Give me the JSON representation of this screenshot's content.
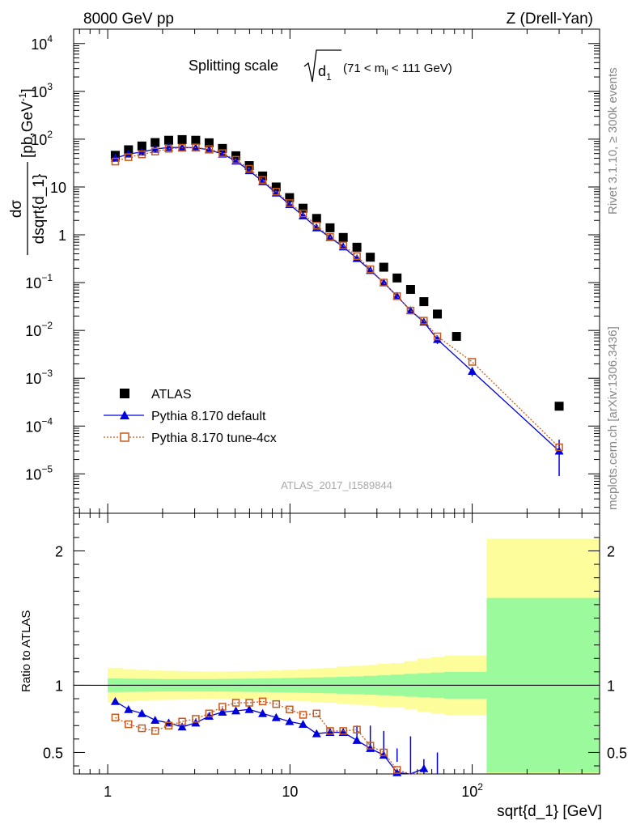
{
  "chart_data": {
    "type": "scatter",
    "header_left": "8000 GeV pp",
    "header_right": "Z (Drell-Yan)",
    "title_main": "Splitting scale",
    "title_sqrt": "d",
    "title_sqrt_sub": "1",
    "title_range_a": "(71 < m",
    "title_range_sub": "ll",
    "title_range_b": " < 111 GeV)",
    "ylabel_num": "dσ",
    "ylabel_den": "dsqrt{d_1}",
    "ylabel_unit": "[pb,GeV",
    "ylabel_unit_sup": "-1",
    "ylabel_unit_end": "]",
    "ratio_ylabel": "Ratio to ATLAS",
    "xlabel": "sqrt{d_1} [GeV]",
    "side_text_top": "Rivet 3.1.10, ≥ 300k events",
    "side_text_bottom": "mcplots.cern.ch [arXiv:1306.3436]",
    "watermark": "ATLAS_2017_I1589844",
    "x_scale": "log",
    "xlim": [
      0.65,
      500
    ],
    "ylim_main": [
      1.5e-06,
      20000
    ],
    "ylim_ratio": [
      0.34,
      2.28
    ],
    "x_tick_labels": [
      {
        "v": 1,
        "t": "1"
      },
      {
        "v": 10,
        "t": "10"
      },
      {
        "v": 100,
        "t": "10",
        "sup": "2"
      }
    ],
    "y_tick_labels_main": [
      {
        "v": 10000,
        "t": "10",
        "sup": "4"
      },
      {
        "v": 1000,
        "t": "10",
        "sup": "3"
      },
      {
        "v": 100,
        "t": "10",
        "sup": "2"
      },
      {
        "v": 10,
        "t": "10"
      },
      {
        "v": 1,
        "t": "1"
      },
      {
        "v": 0.1,
        "t": "10",
        "sup": "−1"
      },
      {
        "v": 0.01,
        "t": "10",
        "sup": "−2"
      },
      {
        "v": 0.001,
        "t": "10",
        "sup": "−3"
      },
      {
        "v": 0.0001,
        "t": "10",
        "sup": "−4"
      },
      {
        "v": 1e-05,
        "t": "10",
        "sup": "−5"
      }
    ],
    "y_tick_labels_ratio": [
      {
        "v": 0.5,
        "t": "0.5"
      },
      {
        "v": 1,
        "t": "1"
      },
      {
        "v": 2,
        "t": "2"
      }
    ],
    "legend": [
      {
        "label": "ATLAS",
        "color": "#000000",
        "marker": "square"
      },
      {
        "label": "Pythia 8.170 default",
        "color": "#0000dd",
        "marker": "triangle"
      },
      {
        "label": "Pythia 8.170 tune-4cx",
        "color": "#c85a1e",
        "marker": "open-square"
      }
    ],
    "series": [
      {
        "name": "ATLAS",
        "x": [
          1.1,
          1.3,
          1.54,
          1.82,
          2.16,
          2.56,
          3.04,
          3.6,
          4.26,
          5.05,
          5.98,
          7.08,
          8.4,
          9.95,
          11.8,
          14.0,
          16.6,
          19.6,
          23.3,
          27.6,
          32.7,
          38.7,
          45.9,
          54.3,
          64.4,
          82.0,
          300.0
        ],
        "y": [
          46,
          60,
          72,
          85,
          95,
          98,
          95,
          84,
          64,
          45,
          28,
          17,
          10,
          6.0,
          3.6,
          2.2,
          1.4,
          0.88,
          0.55,
          0.34,
          0.21,
          0.125,
          0.072,
          0.04,
          0.022,
          0.0075,
          0.00026
        ]
      },
      {
        "name": "Pythia 8.170 default",
        "x": [
          1.1,
          1.3,
          1.54,
          1.82,
          2.16,
          2.56,
          3.04,
          3.6,
          4.26,
          5.05,
          5.98,
          7.08,
          8.4,
          9.95,
          11.8,
          14.0,
          16.6,
          19.6,
          23.3,
          27.6,
          32.7,
          38.7,
          45.9,
          54.3,
          64.4,
          100.0,
          300.0
        ],
        "y": [
          40,
          49,
          54,
          62,
          67,
          67,
          66,
          60,
          49,
          35,
          22,
          13,
          7.5,
          4.3,
          2.5,
          1.4,
          0.88,
          0.56,
          0.32,
          0.18,
          0.1,
          0.052,
          0.026,
          0.015,
          0.0065,
          0.0014,
          3e-05
        ],
        "ratio": [
          0.88,
          0.82,
          0.79,
          0.74,
          0.72,
          0.69,
          0.72,
          0.77,
          0.8,
          0.81,
          0.82,
          0.79,
          0.76,
          0.73,
          0.71,
          0.64,
          0.65,
          0.65,
          0.59,
          0.53,
          0.48,
          0.35,
          0.3,
          0.38
        ]
      },
      {
        "name": "Pythia 8.170 tune-4cx",
        "x": [
          1.1,
          1.3,
          1.54,
          1.82,
          2.16,
          2.56,
          3.04,
          3.6,
          4.26,
          5.05,
          5.98,
          7.08,
          8.4,
          9.95,
          11.8,
          14.0,
          16.6,
          19.6,
          23.3,
          27.6,
          32.7,
          38.7,
          45.9,
          54.3,
          64.4,
          100.0,
          300.0
        ],
        "y": [
          34,
          42,
          48,
          55,
          63,
          66,
          67,
          62,
          51,
          37,
          24,
          14,
          8,
          4.6,
          2.8,
          1.55,
          0.9,
          0.6,
          0.36,
          0.19,
          0.1,
          0.052,
          0.026,
          0.016,
          0.0075,
          0.0022,
          3.6e-05
        ],
        "ratio": [
          0.76,
          0.71,
          0.68,
          0.66,
          0.7,
          0.73,
          0.75,
          0.79,
          0.84,
          0.87,
          0.87,
          0.88,
          0.86,
          0.82,
          0.78,
          0.79,
          0.66,
          0.66,
          0.67,
          0.55,
          0.5,
          0.37,
          0.32,
          0.28
        ]
      }
    ],
    "pythia_default_errors_main": [
      {
        "i": 25,
        "lo": 0.0011,
        "hi": 0.0017
      },
      {
        "i": 26,
        "lo": 9e-06,
        "hi": 5.2e-05
      },
      {
        "i": 24,
        "lo": 0.0052,
        "hi": 0.0078
      }
    ],
    "pythia_default_errors_ratio": [
      {
        "i": 18,
        "lo": 0.6,
        "hi": 0.7
      },
      {
        "i": 19,
        "lo": 0.55,
        "hi": 0.7
      },
      {
        "i": 20,
        "lo": 0.51,
        "hi": 0.66
      },
      {
        "i": 21,
        "lo": 0.43,
        "hi": 0.53
      },
      {
        "i": 22,
        "lo": 0.33,
        "hi": 0.62
      },
      {
        "i": 23,
        "lo": 0.3,
        "hi": 0.45
      },
      {
        "i": 24,
        "lo": 0.3,
        "hi": 0.5
      }
    ],
    "band_edges": [
      1.0,
      1.2,
      1.42,
      1.68,
      1.99,
      2.36,
      2.8,
      3.32,
      3.93,
      4.66,
      5.52,
      6.54,
      7.75,
      9.18,
      10.9,
      12.9,
      15.3,
      18.1,
      21.5,
      25.4,
      30.1,
      35.7,
      42.3,
      50.1,
      59.4,
      70.3,
      120.0,
      500.0
    ],
    "band_green": [
      0.05,
      0.049,
      0.048,
      0.047,
      0.046,
      0.046,
      0.046,
      0.046,
      0.047,
      0.048,
      0.049,
      0.05,
      0.052,
      0.054,
      0.056,
      0.058,
      0.06,
      0.063,
      0.066,
      0.07,
      0.074,
      0.079,
      0.085,
      0.09,
      0.095,
      0.1,
      0.65
    ],
    "band_yellow": [
      0.13,
      0.12,
      0.115,
      0.11,
      0.108,
      0.106,
      0.104,
      0.102,
      0.102,
      0.104,
      0.106,
      0.108,
      0.11,
      0.115,
      0.12,
      0.125,
      0.13,
      0.14,
      0.145,
      0.15,
      0.16,
      0.165,
      0.18,
      0.2,
      0.21,
      0.22,
      1.09
    ],
    "colors": {
      "green": "#9bfa9b",
      "yellow": "#fdfd9b",
      "blue": "#0000dd",
      "orange": "#c85a1e"
    }
  }
}
